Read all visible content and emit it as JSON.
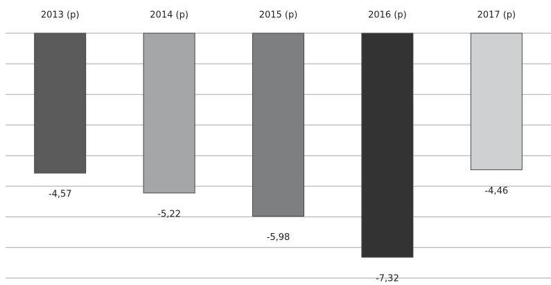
{
  "chart_data": {
    "type": "bar",
    "categories": [
      "2013 (p)",
      "2014 (p)",
      "2015 (p)",
      "2016 (p)",
      "2017 (p)"
    ],
    "values": [
      -4.57,
      -5.22,
      -5.98,
      -7.32,
      -4.46
    ],
    "value_labels": [
      "-4,57",
      "-5,22",
      "-5,98",
      "-7,32",
      "-4,46"
    ],
    "colors": [
      "#5b5b5c",
      "#a5a6a8",
      "#7e7f81",
      "#333333",
      "#cfd0d2"
    ],
    "ylim": [
      -8,
      0
    ],
    "yticks": [
      0,
      -1,
      -2,
      -3,
      -4,
      -5,
      -6,
      -7,
      -8
    ],
    "grid": true
  }
}
